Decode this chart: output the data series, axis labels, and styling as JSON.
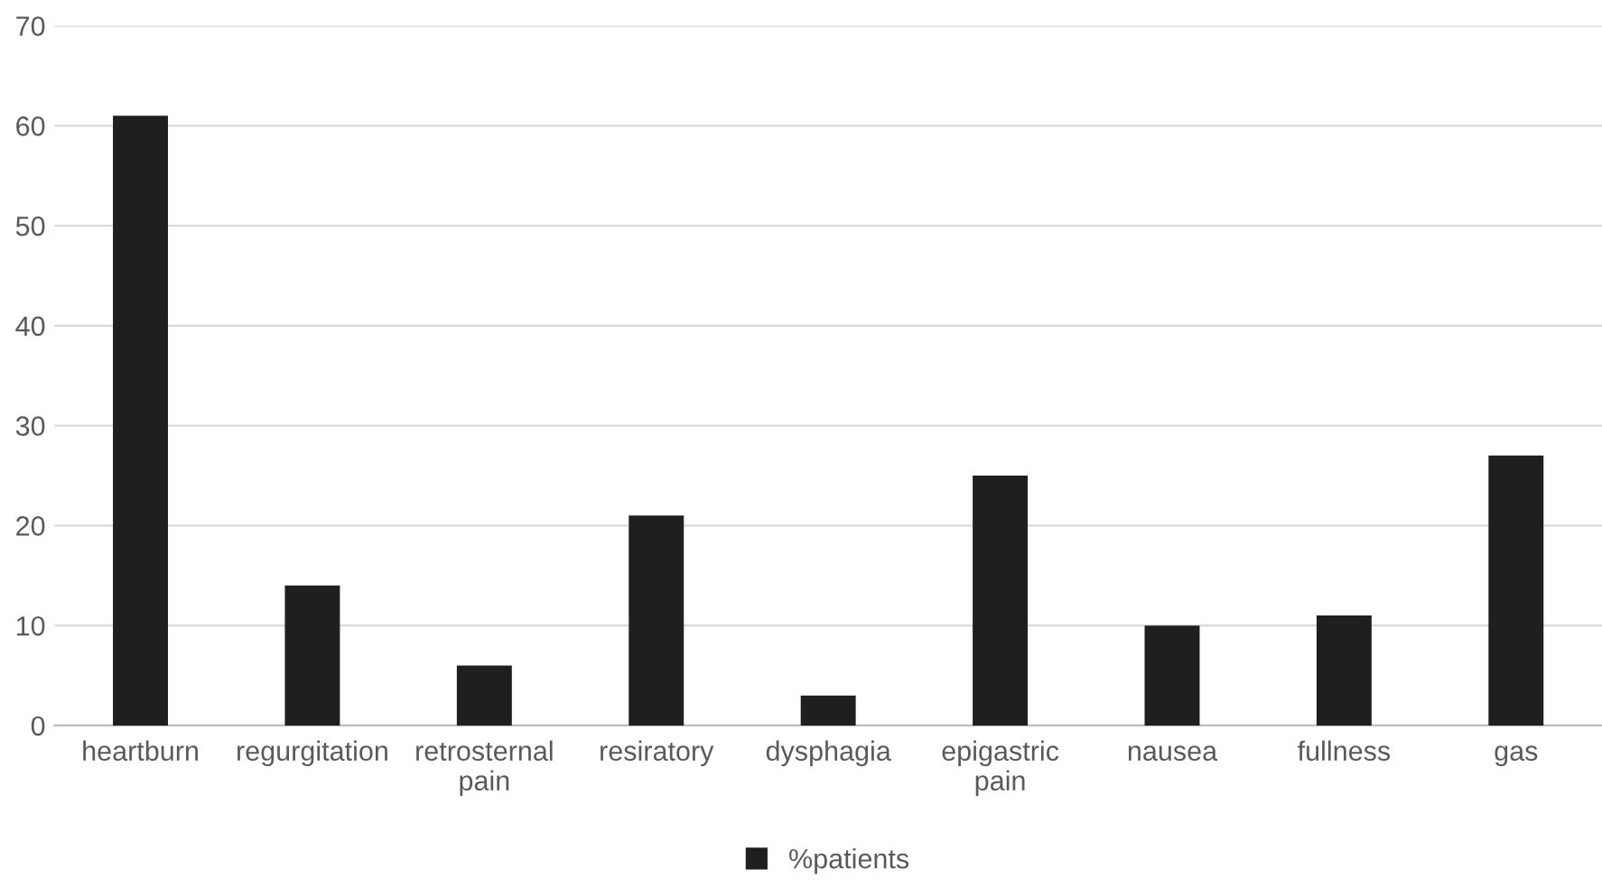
{
  "chart_data": {
    "type": "bar",
    "categories": [
      "heartburn",
      "regurgitation",
      "retrosternal pain",
      "resiratory",
      "dysphagia",
      "epigastric pain",
      "nausea",
      "fullness",
      "gas"
    ],
    "series": [
      {
        "name": "%patients",
        "color": "#1f1f1f",
        "values": [
          61,
          14,
          6,
          21,
          3,
          25,
          10,
          11,
          27
        ]
      }
    ],
    "ylim": [
      0,
      70
    ],
    "yticks": [
      0,
      10,
      20,
      30,
      40,
      50,
      60,
      70
    ],
    "grid": "y",
    "legend": "bottom"
  }
}
